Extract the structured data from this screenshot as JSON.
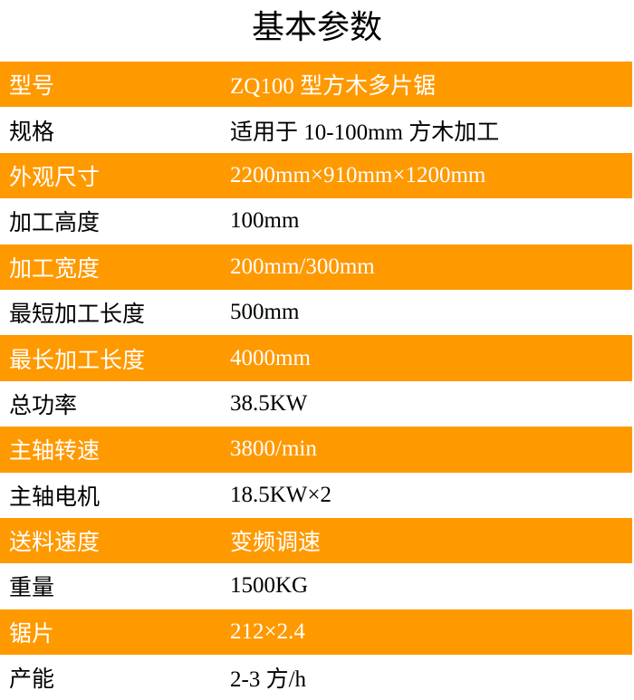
{
  "title": "基本参数",
  "accent": "#ff9900",
  "rows": [
    {
      "k": "型号",
      "v": "ZQ100 型方木多片锯"
    },
    {
      "k": "规格",
      "v": "适用于 10-100mm 方木加工"
    },
    {
      "k": "外观尺寸",
      "v": "2200mm×910mm×1200mm"
    },
    {
      "k": "加工高度",
      "v": "100mm"
    },
    {
      "k": "加工宽度",
      "v": "200mm/300mm"
    },
    {
      "k": "最短加工长度",
      "v": "500mm"
    },
    {
      "k": "最长加工长度",
      "v": "4000mm"
    },
    {
      "k": "总功率",
      "v": "38.5KW"
    },
    {
      "k": "主轴转速",
      "v": "3800/min"
    },
    {
      "k": "主轴电机",
      "v": "18.5KW×2"
    },
    {
      "k": "送料速度",
      "v": "变频调速"
    },
    {
      "k": "重量",
      "v": "1500KG"
    },
    {
      "k": "锯片",
      "v": "212×2.4"
    },
    {
      "k": "产能",
      "v": "2-3 方/h"
    }
  ]
}
